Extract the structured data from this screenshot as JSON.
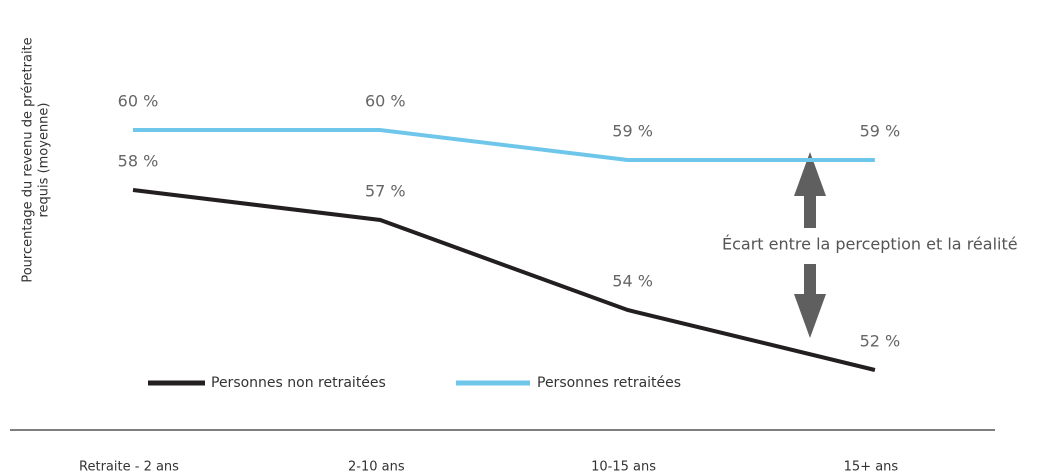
{
  "chart_data": {
    "type": "line",
    "ylabel": [
      "Pourcentage du revenu de préretraite",
      "requis (moyenne)"
    ],
    "categories": [
      "Retraite - 2 ans",
      "2-10 ans",
      "10-15 ans",
      "15+ ans"
    ],
    "series": [
      {
        "name": "Personnes non retraitées",
        "color": "#231f20",
        "values": [
          58,
          57,
          54,
          52
        ],
        "value_labels": [
          "58 %",
          "57 %",
          "54 %",
          "52 %"
        ]
      },
      {
        "name": "Personnes retraitées",
        "color": "#6ec6ea",
        "values": [
          60,
          60,
          59,
          59
        ],
        "value_labels": [
          "60 %",
          "60 %",
          "59 %",
          "59 %"
        ]
      }
    ],
    "ylim": [
      50,
      62
    ],
    "annotation": "Écart entre la perception et la réalité"
  }
}
